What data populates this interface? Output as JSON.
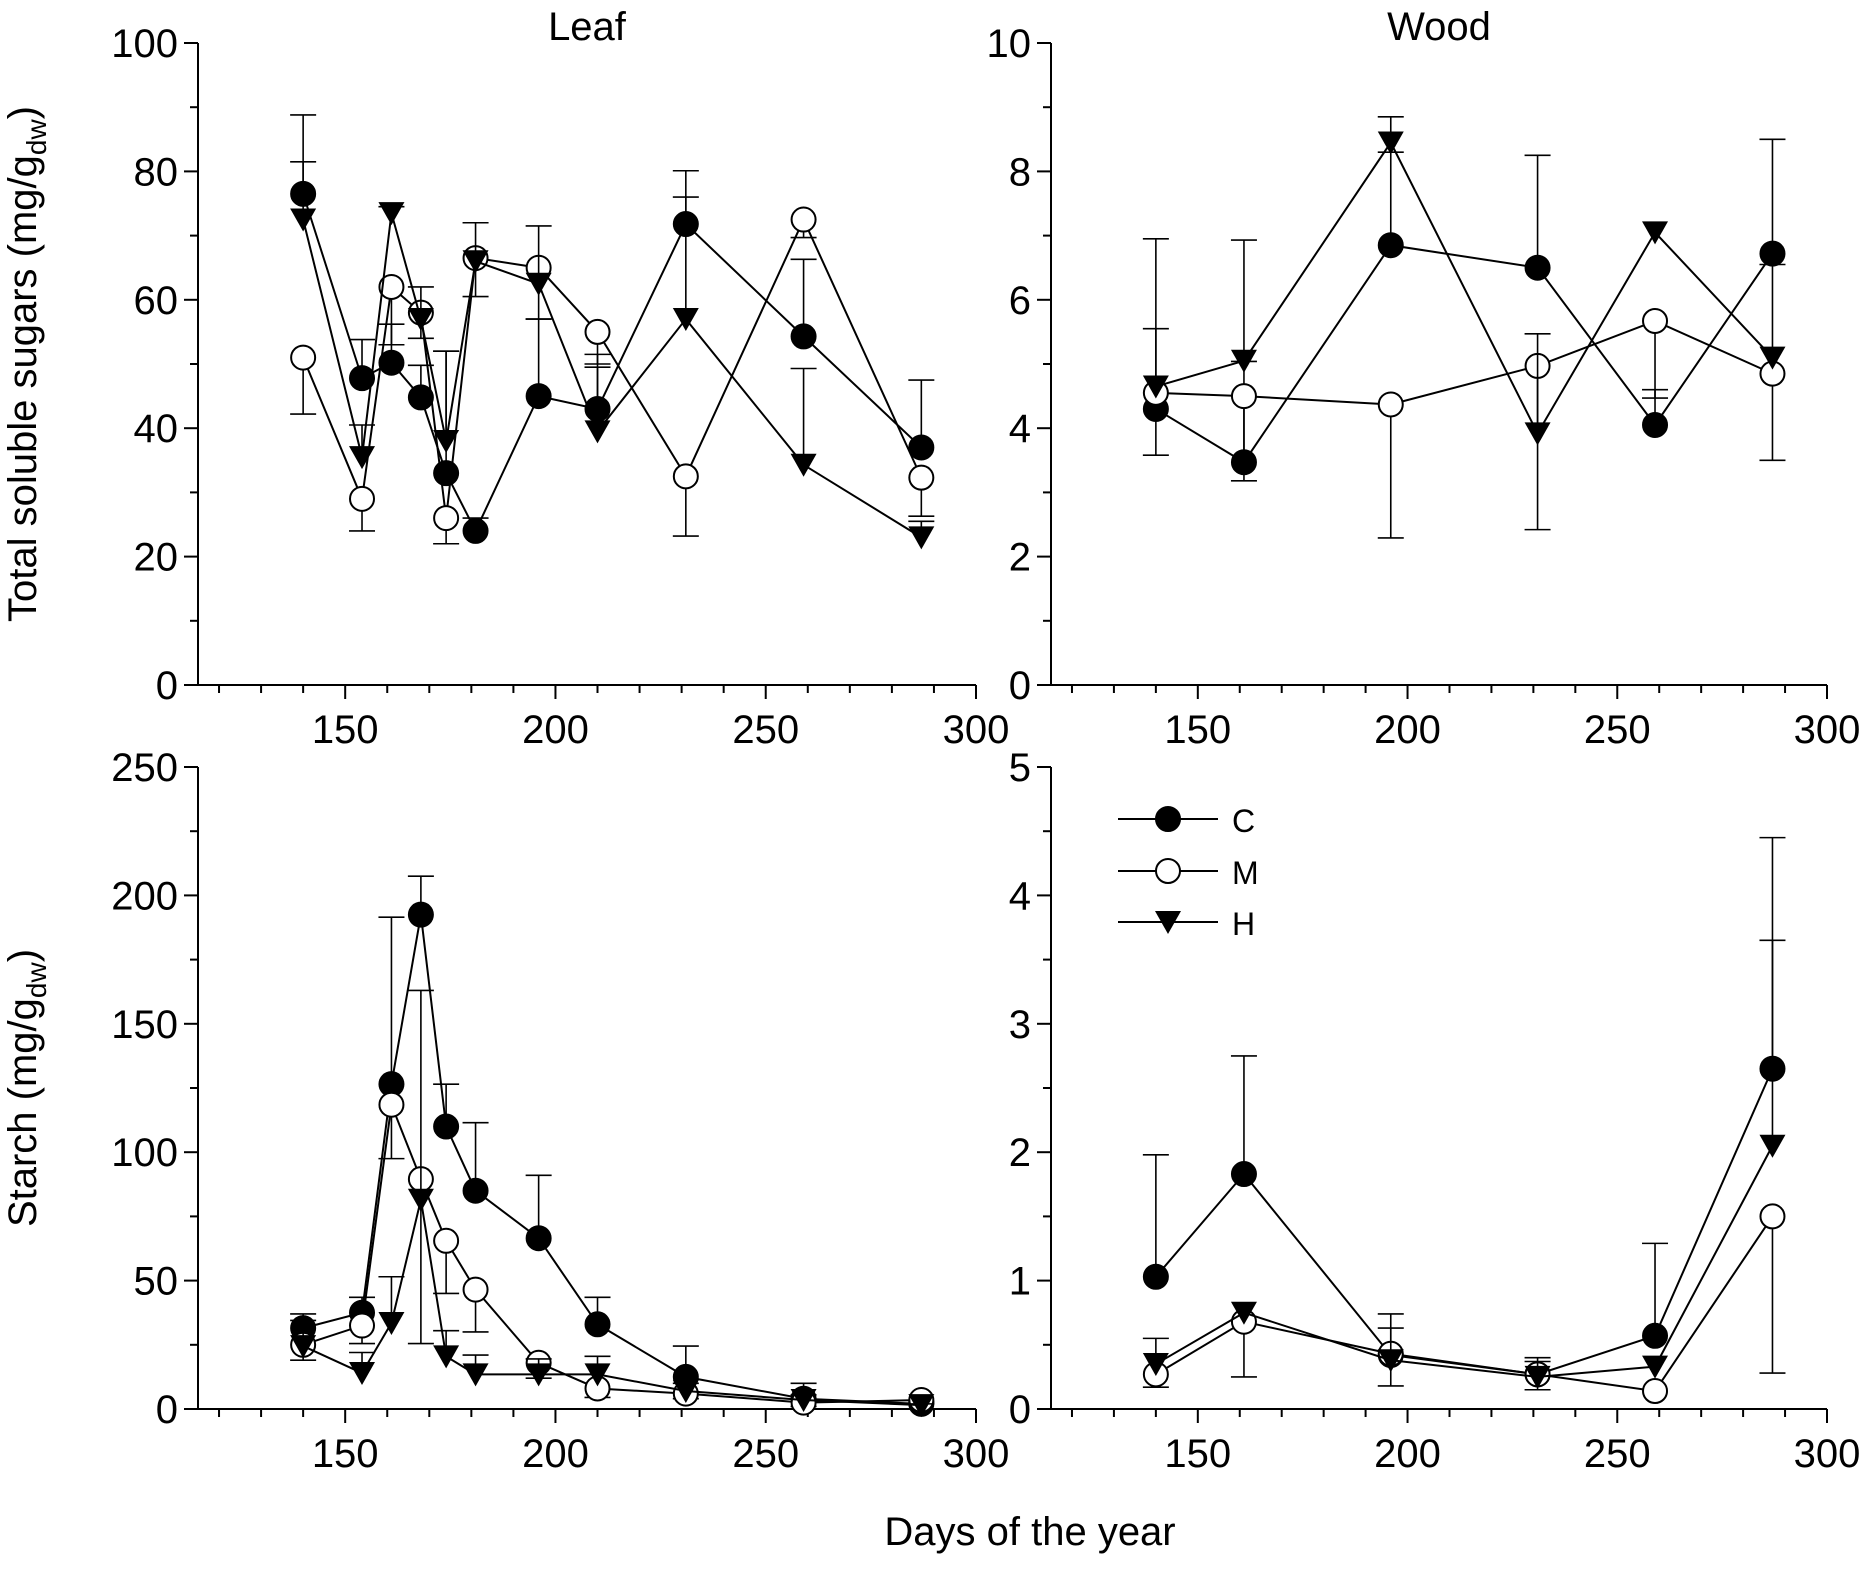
{
  "figure": {
    "xlabel": "Days of the year",
    "legend": [
      {
        "key": "C",
        "label": "C",
        "marker": "filled-circle"
      },
      {
        "key": "M",
        "label": "M",
        "marker": "open-circle"
      },
      {
        "key": "H",
        "label": "H",
        "marker": "filled-triangle-down"
      }
    ]
  },
  "chart_data": [
    {
      "id": "leaf-sugars",
      "type": "line",
      "title": "Leaf",
      "ylabel": "Total soluble sugars (mg/g",
      "ylabel_sub": "dw",
      "ylabel_close": ")",
      "xlim": [
        115,
        300
      ],
      "xticks": [
        150,
        200,
        250,
        300
      ],
      "ylim": [
        0,
        100
      ],
      "yticks": [
        0,
        20,
        40,
        60,
        80,
        100
      ],
      "series": [
        {
          "name": "C",
          "x": [
            140,
            154,
            161,
            168,
            174,
            181,
            196,
            210,
            231,
            259,
            287
          ],
          "y": [
            76.5,
            47.8,
            50.2,
            44.8,
            33.0,
            24.0,
            45.0,
            43.0,
            71.8,
            54.3,
            37.0
          ],
          "err": [
            12.3,
            6.0,
            6.0,
            5.0,
            19.0,
            2.0,
            12.0,
            6.5,
            8.3,
            12.0,
            10.5
          ]
        },
        {
          "name": "M",
          "x": [
            140,
            154,
            161,
            168,
            174,
            181,
            196,
            210,
            231,
            259,
            287
          ],
          "y": [
            51.0,
            29.0,
            62.0,
            58.0,
            26.0,
            66.5,
            65.0,
            55.0,
            32.5,
            72.5,
            32.3
          ],
          "err": [
            8.8,
            5.0,
            9.0,
            4.0,
            4.0,
            6.0,
            8.0,
            5.0,
            9.3,
            2.8,
            6.0
          ]
        },
        {
          "name": "H",
          "x": [
            140,
            154,
            161,
            168,
            174,
            181,
            196,
            210,
            231,
            259,
            287
          ],
          "y": [
            72.5,
            35.5,
            73.5,
            57.0,
            38.0,
            66.0,
            62.5,
            39.5,
            57.0,
            34.3,
            23.0
          ],
          "err": [
            9.0,
            5.0,
            1.0,
            5.0,
            14.0,
            6.0,
            9.0,
            12.0,
            19.0,
            15.0,
            2.5
          ]
        }
      ]
    },
    {
      "id": "wood-sugars",
      "type": "line",
      "title": "Wood",
      "ylabel": "",
      "xlim": [
        115,
        300
      ],
      "xticks": [
        150,
        200,
        250,
        300
      ],
      "ylim": [
        0,
        10
      ],
      "yticks": [
        0,
        2,
        4,
        6,
        8,
        10
      ],
      "series": [
        {
          "name": "C",
          "x": [
            140,
            161,
            196,
            231,
            259,
            287
          ],
          "y": [
            4.3,
            3.47,
            6.85,
            6.5,
            4.05,
            6.72
          ],
          "err": [
            2.65,
            1.57,
            1.45,
            1.75,
            0.55,
            1.78
          ]
        },
        {
          "name": "M",
          "x": [
            140,
            161,
            196,
            231,
            259,
            287
          ],
          "y": [
            4.55,
            4.5,
            4.37,
            4.97,
            5.67,
            4.85
          ],
          "err": [
            0.97,
            1.32,
            2.08,
            2.55,
            1.2,
            1.35
          ]
        },
        {
          "name": "H",
          "x": [
            140,
            161,
            196,
            231,
            259,
            287
          ],
          "y": [
            4.65,
            5.05,
            8.45,
            3.92,
            7.05,
            5.1
          ],
          "err": [
            0.9,
            1.88,
            0.4,
            1.55,
            0.0,
            1.45
          ]
        }
      ]
    },
    {
      "id": "leaf-starch",
      "type": "line",
      "title": "",
      "ylabel": "Starch (mg/g",
      "ylabel_sub": "dw",
      "ylabel_close": ")",
      "xlim": [
        115,
        300
      ],
      "xticks": [
        150,
        200,
        250,
        300
      ],
      "ylim": [
        0,
        250
      ],
      "yticks": [
        0,
        50,
        100,
        150,
        200,
        250
      ],
      "series": [
        {
          "name": "C",
          "x": [
            140,
            154,
            161,
            168,
            174,
            181,
            196,
            210,
            231,
            259,
            287
          ],
          "y": [
            31.5,
            37.5,
            126.5,
            192.5,
            110.0,
            85.0,
            66.5,
            33.0,
            12.5,
            4.0,
            2.0
          ],
          "err": [
            5.5,
            6.0,
            65.0,
            15.0,
            16.5,
            26.5,
            24.5,
            10.5,
            12.0,
            6.0,
            0.5
          ]
        },
        {
          "name": "M",
          "x": [
            140,
            154,
            161,
            168,
            174,
            181,
            196,
            210,
            231,
            259,
            287
          ],
          "y": [
            25.0,
            32.5,
            118.5,
            89.5,
            65.5,
            46.5,
            18.0,
            8.0,
            6.0,
            2.5,
            3.5
          ],
          "err": [
            6.0,
            7.0,
            21.0,
            64.0,
            20.5,
            16.5,
            6.0,
            3.5,
            2.0,
            1.5,
            0.5
          ]
        },
        {
          "name": "H",
          "x": [
            140,
            154,
            161,
            168,
            174,
            181,
            196,
            210,
            231,
            259,
            287
          ],
          "y": [
            24.5,
            14.0,
            33.5,
            81.5,
            20.5,
            13.5,
            13.5,
            13.5,
            7.0,
            3.5,
            1.5
          ],
          "err": [
            10.0,
            8.0,
            18.0,
            81.5,
            10.0,
            7.5,
            6.0,
            7.0,
            3.0,
            2.0,
            0.5
          ]
        }
      ]
    },
    {
      "id": "wood-starch",
      "type": "line",
      "title": "",
      "ylabel": "",
      "xlim": [
        115,
        300
      ],
      "xticks": [
        150,
        200,
        250,
        300
      ],
      "ylim": [
        0,
        5
      ],
      "yticks": [
        0,
        1,
        2,
        3,
        4,
        5
      ],
      "series": [
        {
          "name": "C",
          "x": [
            140,
            161,
            196,
            231,
            259,
            287
          ],
          "y": [
            1.03,
            1.83,
            0.42,
            0.27,
            0.57,
            2.65
          ],
          "err": [
            0.95,
            0.92,
            0.32,
            0.1,
            0.72,
            1.8
          ]
        },
        {
          "name": "M",
          "x": [
            140,
            161,
            196,
            231,
            259,
            287
          ],
          "y": [
            0.27,
            0.68,
            0.43,
            0.27,
            0.14,
            1.5
          ],
          "err": [
            0.1,
            0.43,
            0.25,
            0.12,
            0.0,
            1.22
          ]
        },
        {
          "name": "H",
          "x": [
            140,
            161,
            196,
            231,
            259,
            287
          ],
          "y": [
            0.35,
            0.75,
            0.38,
            0.25,
            0.33,
            2.05
          ],
          "err": [
            0.2,
            0.0,
            0.25,
            0.15,
            0.0,
            1.6
          ]
        }
      ]
    }
  ]
}
